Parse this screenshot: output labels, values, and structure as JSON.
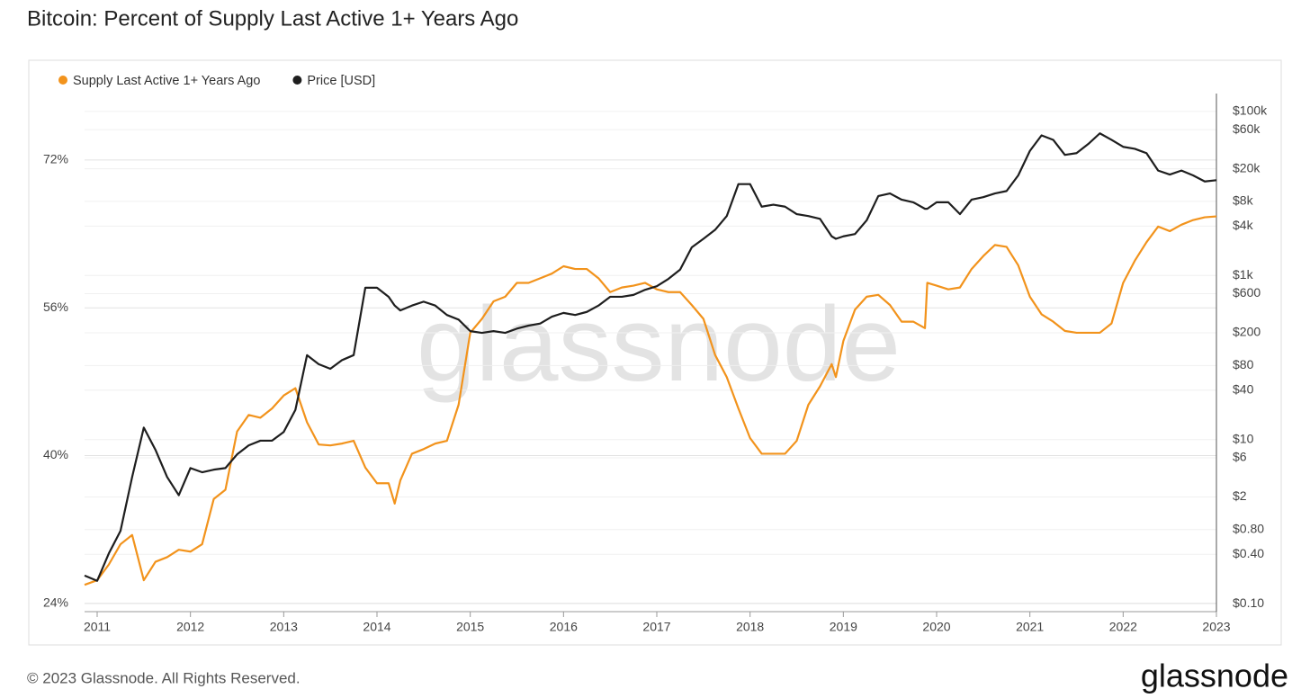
{
  "chart_data": {
    "type": "line",
    "title": "Bitcoin: Percent of Supply Last Active 1+ Years Ago",
    "watermark": "glassnode",
    "footer": "© 2023 Glassnode. All Rights Reserved.",
    "logo": "glassnode",
    "x": [
      2010.865,
      2011,
      2011.125,
      2011.25,
      2011.375,
      2011.5,
      2011.625,
      2011.75,
      2011.875,
      2012,
      2012.125,
      2012.25,
      2012.375,
      2012.5,
      2012.625,
      2012.75,
      2012.875,
      2013,
      2013.125,
      2013.25,
      2013.375,
      2013.5,
      2013.625,
      2013.75,
      2013.875,
      2014,
      2014.125,
      2014.19,
      2014.25,
      2014.375,
      2014.5,
      2014.625,
      2014.75,
      2014.875,
      2015,
      2015.125,
      2015.25,
      2015.375,
      2015.5,
      2015.625,
      2015.75,
      2015.875,
      2016,
      2016.125,
      2016.25,
      2016.375,
      2016.5,
      2016.625,
      2016.75,
      2016.875,
      2017,
      2017.125,
      2017.25,
      2017.375,
      2017.5,
      2017.625,
      2017.75,
      2017.875,
      2018,
      2018.125,
      2018.25,
      2018.375,
      2018.5,
      2018.625,
      2018.75,
      2018.875,
      2018.92,
      2019,
      2019.125,
      2019.25,
      2019.375,
      2019.5,
      2019.625,
      2019.75,
      2019.875,
      2019.9,
      2020,
      2020.125,
      2020.25,
      2020.375,
      2020.5,
      2020.625,
      2020.75,
      2020.875,
      2021,
      2021.125,
      2021.25,
      2021.375,
      2021.5,
      2021.625,
      2021.75,
      2021.875,
      2022,
      2022.125,
      2022.25,
      2022.375,
      2022.5,
      2022.625,
      2022.75,
      2022.875,
      2023
    ],
    "xlim": [
      2010.865,
      2023
    ],
    "xticks": [
      2011,
      2012,
      2013,
      2014,
      2015,
      2016,
      2017,
      2018,
      2019,
      2020,
      2021,
      2022,
      2023
    ],
    "ylim": [
      23.1,
      79.2
    ],
    "yticks": [
      {
        "value": 24,
        "label": "24%"
      },
      {
        "value": 40,
        "label": "40%"
      },
      {
        "value": 56,
        "label": "56%"
      },
      {
        "value": 72,
        "label": "72%"
      }
    ],
    "y2lim": [
      0.08,
      165000
    ],
    "y2log": true,
    "y2ticks": [
      {
        "value": 100000,
        "label": "$100k"
      },
      {
        "value": 60000,
        "label": "$60k"
      },
      {
        "value": 20000,
        "label": "$20k"
      },
      {
        "value": 8000,
        "label": "$8k"
      },
      {
        "value": 4000,
        "label": "$4k"
      },
      {
        "value": 1000,
        "label": "$1k"
      },
      {
        "value": 600,
        "label": "$600"
      },
      {
        "value": 200,
        "label": "$200"
      },
      {
        "value": 80,
        "label": "$80"
      },
      {
        "value": 40,
        "label": "$40"
      },
      {
        "value": 10,
        "label": "$10"
      },
      {
        "value": 6,
        "label": "$6"
      },
      {
        "value": 2,
        "label": "$2"
      },
      {
        "value": 0.8,
        "label": "$0.80"
      },
      {
        "value": 0.4,
        "label": "$0.40"
      },
      {
        "value": 0.1,
        "label": "$0.10"
      }
    ],
    "grid": true,
    "legend": "top-left",
    "series": [
      {
        "name": "Supply Last Active 1+ Years Ago",
        "color": "#f2931c",
        "axis": "y",
        "values": [
          26.0,
          26.5,
          28.2,
          30.4,
          31.4,
          26.5,
          28.5,
          29.0,
          29.8,
          29.6,
          30.4,
          35.3,
          36.3,
          42.6,
          44.4,
          44.1,
          45.1,
          46.5,
          47.3,
          43.6,
          41.2,
          41.1,
          41.3,
          41.6,
          38.7,
          37.0,
          37.0,
          34.8,
          37.3,
          40.2,
          40.7,
          41.3,
          41.6,
          45.5,
          53.3,
          54.8,
          56.7,
          57.2,
          58.7,
          58.7,
          59.2,
          59.7,
          60.5,
          60.2,
          60.2,
          59.2,
          57.7,
          58.2,
          58.4,
          58.7,
          58.0,
          57.7,
          57.7,
          56.3,
          54.8,
          50.9,
          48.5,
          45.1,
          41.9,
          40.2,
          40.2,
          40.2,
          41.6,
          45.5,
          47.5,
          49.9,
          48.5,
          52.4,
          55.8,
          57.2,
          57.4,
          56.3,
          54.5,
          54.5,
          53.8,
          58.7,
          58.4,
          58.0,
          58.2,
          60.2,
          61.6,
          62.8,
          62.6,
          60.6,
          57.2,
          55.3,
          54.5,
          53.5,
          53.3,
          53.3,
          53.3,
          54.3,
          58.7,
          61.1,
          63.1,
          64.8,
          64.3,
          65.0,
          65.5,
          65.8,
          65.9
        ]
      },
      {
        "name": "Price [USD]",
        "color": "#1e1e1e",
        "axis": "y2",
        "values": [
          0.22,
          0.19,
          0.41,
          0.77,
          3.5,
          14,
          7.5,
          3.5,
          2.1,
          4.5,
          4.0,
          4.3,
          4.5,
          6.6,
          8.5,
          9.7,
          9.7,
          12.4,
          23,
          107,
          83,
          73,
          93,
          107,
          710,
          710,
          550,
          430,
          375,
          430,
          480,
          430,
          330,
          290,
          210,
          200,
          210,
          200,
          225,
          245,
          260,
          315,
          350,
          330,
          360,
          430,
          550,
          550,
          580,
          670,
          740,
          910,
          1180,
          2200,
          2800,
          3600,
          5300,
          13000,
          13000,
          6900,
          7300,
          6900,
          5600,
          5300,
          4900,
          3000,
          2800,
          3000,
          3200,
          4700,
          9300,
          10000,
          8400,
          7800,
          6500,
          6500,
          7800,
          7800,
          5600,
          8400,
          9000,
          10000,
          10700,
          16600,
          33000,
          51000,
          45000,
          29500,
          31000,
          40000,
          54000,
          45000,
          37000,
          35000,
          31000,
          19000,
          17000,
          19000,
          16600,
          14000,
          14500
        ]
      }
    ]
  }
}
